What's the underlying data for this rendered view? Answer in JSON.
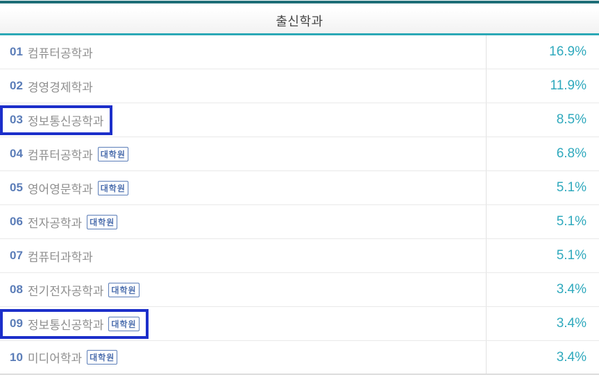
{
  "header": {
    "title": "출신학과"
  },
  "colors": {
    "top_bar": "#1e6e77",
    "header_underline": "#2ba9b6",
    "header_title": "#444444",
    "rank_number": "#5b7db8",
    "department_name": "#8f8f8f",
    "badge_border": "#5b7db8",
    "badge_text": "#4d6fae",
    "percent_text": "#2fa9bd",
    "row_separator": "#e9e9e9",
    "highlight_box": "#1c2fca"
  },
  "rows": [
    {
      "rank": "01",
      "name": "컴퓨터공학과",
      "badge": "",
      "percent": "16.9%",
      "highlighted": false
    },
    {
      "rank": "02",
      "name": "경영경제학과",
      "badge": "",
      "percent": "11.9%",
      "highlighted": false
    },
    {
      "rank": "03",
      "name": "정보통신공학과",
      "badge": "",
      "percent": "8.5%",
      "highlighted": true
    },
    {
      "rank": "04",
      "name": "컴퓨터공학과",
      "badge": "대학원",
      "percent": "6.8%",
      "highlighted": false
    },
    {
      "rank": "05",
      "name": "영어영문학과",
      "badge": "대학원",
      "percent": "5.1%",
      "highlighted": false
    },
    {
      "rank": "06",
      "name": "전자공학과",
      "badge": "대학원",
      "percent": "5.1%",
      "highlighted": false
    },
    {
      "rank": "07",
      "name": "컴퓨터과학과",
      "badge": "",
      "percent": "5.1%",
      "highlighted": false
    },
    {
      "rank": "08",
      "name": "전기전자공학과",
      "badge": "대학원",
      "percent": "3.4%",
      "highlighted": false
    },
    {
      "rank": "09",
      "name": "정보통신공학과",
      "badge": "대학원",
      "percent": "3.4%",
      "highlighted": true
    },
    {
      "rank": "10",
      "name": "미디어학과",
      "badge": "대학원",
      "percent": "3.4%",
      "highlighted": false
    }
  ]
}
